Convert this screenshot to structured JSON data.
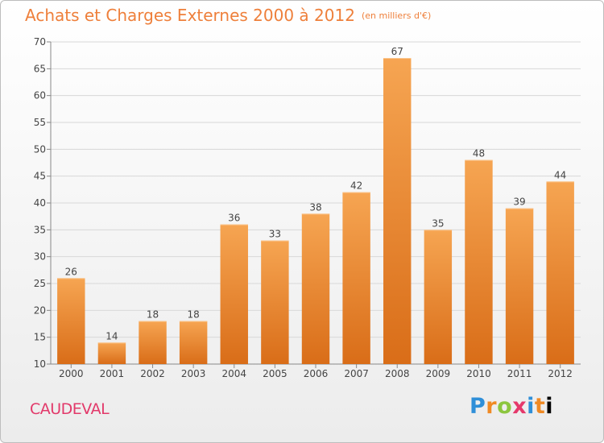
{
  "header": {
    "title": "Achats et Charges Externes 2000 à 2012",
    "unit": "(en milliers d'€)"
  },
  "footer": {
    "city": "CAUDEVAL",
    "logo_letters": [
      "P",
      "r",
      "o",
      "x",
      "i",
      "t",
      "i"
    ]
  },
  "colors": {
    "bar_top": "#f6a552",
    "bar_bottom": "#d96d18",
    "title": "#ee7f3a",
    "city": "#e2396a",
    "grid": "#d8d8d8"
  },
  "chart_data": {
    "type": "bar",
    "title": "Achats et Charges Externes 2000 à 2012",
    "xlabel": "",
    "ylabel": "",
    "ylim": [
      10,
      70
    ],
    "yticks": [
      10,
      15,
      20,
      25,
      30,
      35,
      40,
      45,
      50,
      55,
      60,
      65,
      70
    ],
    "grid": true,
    "categories": [
      "2000",
      "2001",
      "2002",
      "2003",
      "2004",
      "2005",
      "2006",
      "2007",
      "2008",
      "2009",
      "2010",
      "2011",
      "2012"
    ],
    "values": [
      26,
      14,
      18,
      18,
      36,
      33,
      38,
      42,
      67,
      35,
      48,
      39,
      44
    ]
  }
}
